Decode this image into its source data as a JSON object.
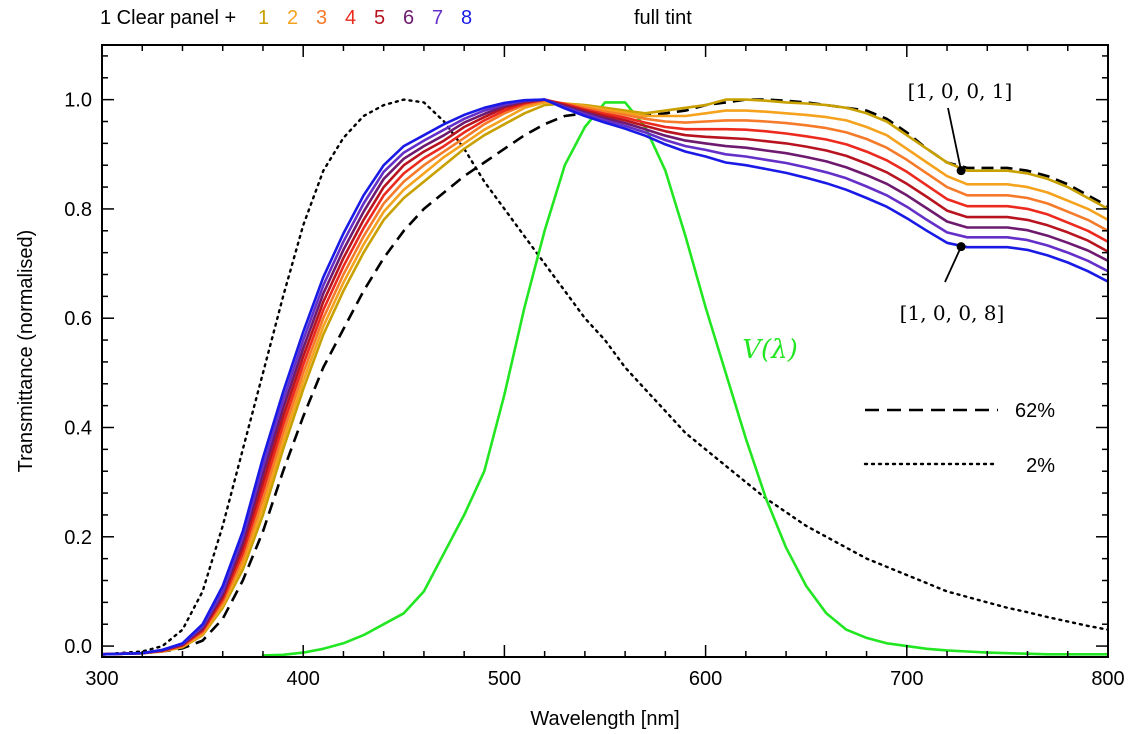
{
  "header": {
    "prefix": "1 Clear panel +",
    "suffix": "full tint"
  },
  "chart_data": {
    "type": "line",
    "xlabel": "Wavelength [nm]",
    "ylabel": "Transmittance (normalised)",
    "xlim": [
      300,
      800
    ],
    "ylim": [
      -0.02,
      1.1
    ],
    "xticks": [
      300,
      400,
      500,
      600,
      700,
      800
    ],
    "xtick_labels": [
      "300",
      "400",
      "500",
      "600",
      "700",
      "800"
    ],
    "yticks": [
      0.0,
      0.2,
      0.4,
      0.6,
      0.8,
      1.0
    ],
    "ytick_labels": [
      "0.0",
      "0.2",
      "0.4",
      "0.6",
      "0.8",
      "1.0"
    ],
    "grid": false,
    "x": [
      300,
      320,
      330,
      340,
      350,
      360,
      370,
      380,
      390,
      400,
      410,
      420,
      430,
      440,
      450,
      460,
      470,
      480,
      490,
      500,
      510,
      520,
      530,
      540,
      550,
      560,
      570,
      580,
      590,
      600,
      610,
      620,
      630,
      640,
      650,
      660,
      670,
      680,
      690,
      700,
      710,
      720,
      730,
      740,
      750,
      760,
      770,
      780,
      790,
      800
    ],
    "series": [
      {
        "name": "1",
        "color": "#c8a000",
        "style": "solid",
        "values": [
          -0.015,
          -0.013,
          -0.01,
          -0.002,
          0.02,
          0.07,
          0.14,
          0.24,
          0.36,
          0.47,
          0.57,
          0.65,
          0.72,
          0.78,
          0.82,
          0.85,
          0.88,
          0.91,
          0.935,
          0.955,
          0.975,
          0.99,
          0.993,
          0.99,
          0.985,
          0.98,
          0.975,
          0.98,
          0.985,
          0.99,
          1.0,
          1.0,
          0.998,
          0.995,
          0.993,
          0.99,
          0.985,
          0.975,
          0.96,
          0.935,
          0.91,
          0.885,
          0.87,
          0.87,
          0.87,
          0.865,
          0.855,
          0.84,
          0.82,
          0.8
        ]
      },
      {
        "name": "2",
        "color": "#f5a31e",
        "style": "solid",
        "values": [
          -0.015,
          -0.013,
          -0.01,
          -0.001,
          0.022,
          0.075,
          0.15,
          0.255,
          0.375,
          0.485,
          0.585,
          0.665,
          0.735,
          0.795,
          0.835,
          0.865,
          0.895,
          0.92,
          0.945,
          0.965,
          0.985,
          0.995,
          0.993,
          0.988,
          0.982,
          0.976,
          0.97,
          0.97,
          0.97,
          0.975,
          0.98,
          0.98,
          0.978,
          0.975,
          0.972,
          0.968,
          0.962,
          0.95,
          0.935,
          0.91,
          0.885,
          0.86,
          0.845,
          0.845,
          0.845,
          0.84,
          0.83,
          0.815,
          0.8,
          0.78
        ]
      },
      {
        "name": "3",
        "color": "#f57a2a",
        "style": "solid",
        "values": [
          -0.015,
          -0.013,
          -0.009,
          0.0,
          0.025,
          0.08,
          0.16,
          0.27,
          0.39,
          0.5,
          0.6,
          0.68,
          0.75,
          0.81,
          0.85,
          0.88,
          0.905,
          0.93,
          0.955,
          0.975,
          0.99,
          0.998,
          0.993,
          0.985,
          0.978,
          0.972,
          0.965,
          0.96,
          0.958,
          0.96,
          0.962,
          0.962,
          0.96,
          0.957,
          0.953,
          0.948,
          0.94,
          0.928,
          0.912,
          0.89,
          0.865,
          0.84,
          0.825,
          0.825,
          0.825,
          0.82,
          0.81,
          0.795,
          0.78,
          0.76
        ]
      },
      {
        "name": "4",
        "color": "#ec2a1e",
        "style": "solid",
        "values": [
          -0.015,
          -0.013,
          -0.009,
          0.001,
          0.028,
          0.085,
          0.17,
          0.285,
          0.405,
          0.515,
          0.615,
          0.695,
          0.765,
          0.825,
          0.865,
          0.893,
          0.915,
          0.94,
          0.962,
          0.98,
          0.993,
          1.0,
          0.992,
          0.982,
          0.974,
          0.967,
          0.958,
          0.95,
          0.946,
          0.946,
          0.946,
          0.945,
          0.942,
          0.938,
          0.933,
          0.927,
          0.918,
          0.905,
          0.889,
          0.868,
          0.843,
          0.818,
          0.805,
          0.805,
          0.805,
          0.8,
          0.79,
          0.775,
          0.76,
          0.74
        ]
      },
      {
        "name": "5",
        "color": "#b81420",
        "style": "solid",
        "values": [
          -0.015,
          -0.013,
          -0.008,
          0.002,
          0.03,
          0.09,
          0.18,
          0.3,
          0.42,
          0.53,
          0.63,
          0.71,
          0.78,
          0.84,
          0.88,
          0.905,
          0.925,
          0.95,
          0.968,
          0.985,
          0.995,
          1.0,
          0.99,
          0.98,
          0.97,
          0.962,
          0.952,
          0.942,
          0.935,
          0.932,
          0.93,
          0.928,
          0.924,
          0.92,
          0.914,
          0.907,
          0.897,
          0.883,
          0.867,
          0.846,
          0.822,
          0.797,
          0.785,
          0.785,
          0.785,
          0.78,
          0.77,
          0.757,
          0.742,
          0.722
        ]
      },
      {
        "name": "6",
        "color": "#6e1a6e",
        "style": "solid",
        "values": [
          -0.015,
          -0.013,
          -0.008,
          0.003,
          0.033,
          0.095,
          0.19,
          0.315,
          0.435,
          0.545,
          0.645,
          0.725,
          0.795,
          0.855,
          0.892,
          0.915,
          0.935,
          0.958,
          0.974,
          0.988,
          0.997,
          1.0,
          0.988,
          0.977,
          0.966,
          0.957,
          0.946,
          0.934,
          0.925,
          0.92,
          0.915,
          0.912,
          0.907,
          0.902,
          0.895,
          0.887,
          0.876,
          0.862,
          0.846,
          0.825,
          0.801,
          0.777,
          0.766,
          0.766,
          0.766,
          0.761,
          0.751,
          0.738,
          0.724,
          0.705
        ]
      },
      {
        "name": "7",
        "color": "#6430c8",
        "style": "solid",
        "values": [
          -0.015,
          -0.013,
          -0.007,
          0.004,
          0.036,
          0.1,
          0.2,
          0.33,
          0.45,
          0.56,
          0.66,
          0.74,
          0.81,
          0.868,
          0.903,
          0.925,
          0.945,
          0.965,
          0.98,
          0.991,
          0.998,
          1.0,
          0.986,
          0.974,
          0.962,
          0.952,
          0.94,
          0.926,
          0.915,
          0.908,
          0.9,
          0.896,
          0.89,
          0.884,
          0.876,
          0.867,
          0.856,
          0.841,
          0.825,
          0.804,
          0.78,
          0.757,
          0.748,
          0.748,
          0.748,
          0.743,
          0.733,
          0.72,
          0.705,
          0.686
        ]
      },
      {
        "name": "8",
        "color": "#1a1ae6",
        "style": "solid",
        "values": [
          -0.015,
          -0.013,
          -0.007,
          0.005,
          0.04,
          0.11,
          0.21,
          0.345,
          0.465,
          0.575,
          0.675,
          0.755,
          0.825,
          0.88,
          0.915,
          0.935,
          0.955,
          0.972,
          0.985,
          0.994,
          0.999,
          1.0,
          0.984,
          0.97,
          0.958,
          0.947,
          0.934,
          0.918,
          0.905,
          0.896,
          0.885,
          0.88,
          0.873,
          0.866,
          0.857,
          0.847,
          0.835,
          0.82,
          0.804,
          0.783,
          0.76,
          0.738,
          0.73,
          0.73,
          0.73,
          0.725,
          0.715,
          0.702,
          0.686,
          0.667
        ]
      },
      {
        "name": "62%",
        "color": "#000000",
        "style": "dashed",
        "values": [
          -0.015,
          -0.013,
          -0.01,
          -0.004,
          0.01,
          0.05,
          0.12,
          0.21,
          0.32,
          0.42,
          0.51,
          0.58,
          0.65,
          0.71,
          0.76,
          0.8,
          0.83,
          0.86,
          0.885,
          0.91,
          0.935,
          0.955,
          0.97,
          0.975,
          0.975,
          0.975,
          0.97,
          0.975,
          0.98,
          0.99,
          0.995,
          1.0,
          1.0,
          0.998,
          0.995,
          0.99,
          0.985,
          0.98,
          0.965,
          0.94,
          0.91,
          0.885,
          0.875,
          0.875,
          0.875,
          0.87,
          0.86,
          0.845,
          0.825,
          0.805
        ]
      },
      {
        "name": "2%",
        "color": "#000000",
        "style": "dotted",
        "values": [
          -0.015,
          -0.01,
          0.0,
          0.03,
          0.1,
          0.22,
          0.36,
          0.5,
          0.64,
          0.77,
          0.87,
          0.93,
          0.97,
          0.99,
          1.0,
          0.995,
          0.96,
          0.91,
          0.85,
          0.8,
          0.75,
          0.7,
          0.65,
          0.6,
          0.56,
          0.51,
          0.47,
          0.43,
          0.39,
          0.36,
          0.33,
          0.3,
          0.27,
          0.245,
          0.22,
          0.2,
          0.18,
          0.16,
          0.145,
          0.13,
          0.115,
          0.1,
          0.09,
          0.08,
          0.07,
          0.062,
          0.053,
          0.045,
          0.037,
          0.03
        ]
      },
      {
        "name": "V(λ)",
        "color": "#22e622",
        "style": "solid",
        "values": [
          null,
          null,
          null,
          null,
          null,
          null,
          null,
          -0.017,
          -0.016,
          -0.012,
          -0.005,
          0.005,
          0.02,
          0.04,
          0.06,
          0.1,
          0.17,
          0.24,
          0.32,
          0.46,
          0.62,
          0.76,
          0.88,
          0.95,
          0.995,
          0.995,
          0.95,
          0.87,
          0.75,
          0.62,
          0.5,
          0.38,
          0.27,
          0.18,
          0.11,
          0.06,
          0.03,
          0.015,
          0.005,
          0.0,
          -0.005,
          -0.008,
          -0.01,
          -0.012,
          -0.013,
          -0.014,
          -0.015,
          -0.015,
          -0.015,
          -0.015
        ]
      }
    ],
    "annotations": [
      {
        "text": "[1, 0, 0, 1]",
        "x": 727,
        "y": 0.87
      },
      {
        "text": "[1, 0, 0, 8]",
        "x": 727,
        "y": 0.731
      }
    ],
    "curve_label": {
      "text": "V(λ)",
      "color": "#22e622"
    },
    "legend": {
      "position": "center-right",
      "entries": [
        {
          "label": "62%",
          "style": "dashed"
        },
        {
          "label": "2%",
          "style": "dotted"
        }
      ]
    }
  }
}
